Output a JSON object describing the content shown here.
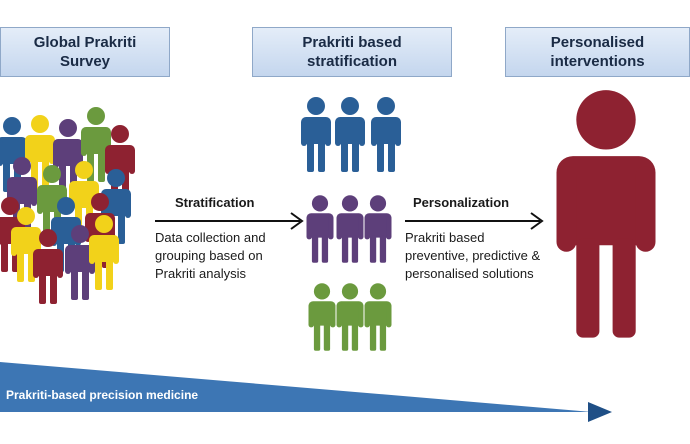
{
  "stages": {
    "survey": "Global Prakriti\nSurvey",
    "stratification": "Prakriti based\nstratification",
    "interventions": "Personalised\ninterventions"
  },
  "steps": {
    "stratification_label": "Stratification",
    "stratification_text": "Data collection and\ngrouping based on\nPrakriti analysis",
    "personalization_label": "Personalization",
    "personalization_text": "Prakriti based\npreventive, predictive &\npersonalised solutions"
  },
  "banner": {
    "text": "Prakriti-based precision medicine"
  },
  "colors": {
    "blue": "#2a5f97",
    "purple": "#5d3f7a",
    "green": "#6b9a3e",
    "red": "#8e2231",
    "yellow": "#f2d21a",
    "banner": "#3d76b4"
  }
}
